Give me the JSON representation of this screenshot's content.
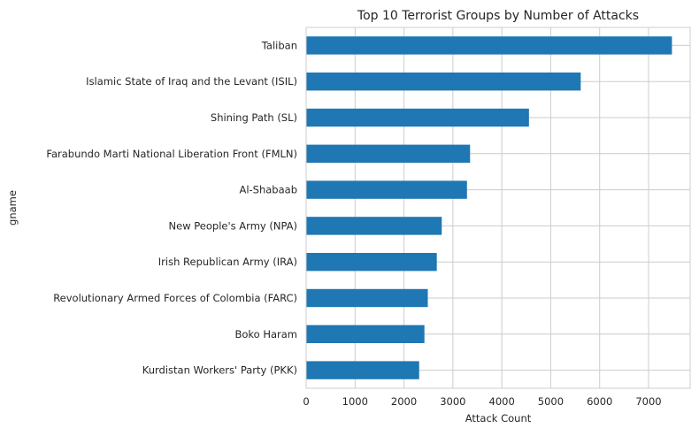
{
  "chart_data": {
    "type": "bar",
    "orientation": "horizontal",
    "title": "Top 10 Terrorist Groups by Number of Attacks",
    "xlabel": "Attack Count",
    "ylabel": "gname",
    "categories": [
      "Taliban",
      "Islamic State of Iraq and the Levant (ISIL)",
      "Shining Path (SL)",
      "Farabundo Marti National Liberation Front (FMLN)",
      "Al-Shabaab",
      "New People's Army (NPA)",
      "Irish Republican Army (IRA)",
      "Revolutionary Armed Forces of Colombia (FARC)",
      "Boko Haram",
      "Kurdistan Workers' Party (PKK)"
    ],
    "values": [
      7478,
      5613,
      4555,
      3351,
      3288,
      2772,
      2671,
      2487,
      2418,
      2310
    ],
    "xlim": [
      0,
      7850
    ],
    "xticks": [
      0,
      1000,
      2000,
      3000,
      4000,
      5000,
      6000,
      7000
    ],
    "grid": true,
    "legend": "none",
    "bar_color": "#1f77b4",
    "grid_color": "#cccccc",
    "spine_color": "#cccccc"
  }
}
